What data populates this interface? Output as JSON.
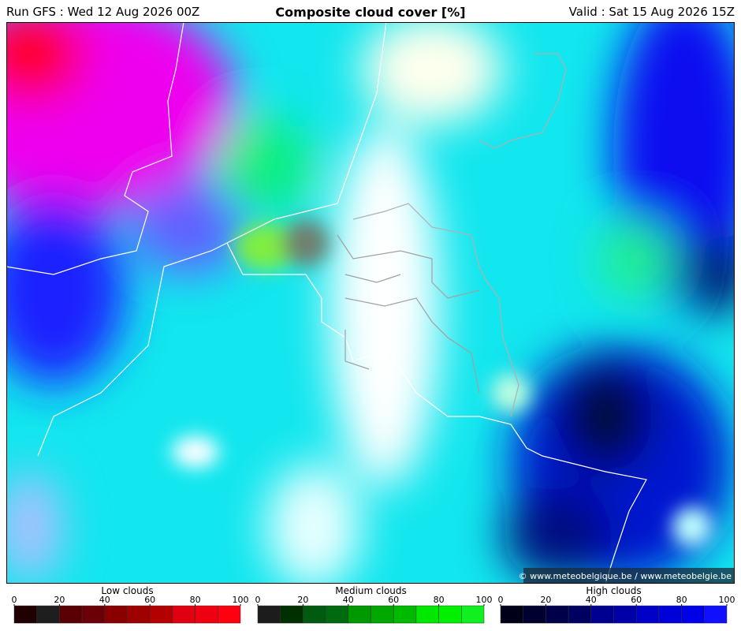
{
  "header": {
    "run": "Run GFS : Wed 12 Aug 2026 00Z",
    "title": "Composite cloud cover [%]",
    "valid": "Valid : Sat 15 Aug 2026 15Z"
  },
  "credit": "© www.meteobelgique.be / www.meteobelgie.be",
  "legends": [
    {
      "title": "Low clouds",
      "ticks": [
        0,
        20,
        40,
        60,
        80,
        100
      ],
      "colors": [
        "#200000",
        "#1e1e1e",
        "#5a0005",
        "#6a0008",
        "#8a0000",
        "#9e0000",
        "#b40000",
        "#e00010",
        "#ee0010",
        "#ff0010"
      ]
    },
    {
      "title": "Medium clouds",
      "ticks": [
        0,
        20,
        40,
        60,
        80,
        100
      ],
      "colors": [
        "#1c1c1c",
        "#003000",
        "#005a10",
        "#006a10",
        "#009a00",
        "#00a800",
        "#00ba00",
        "#00e800",
        "#00f000",
        "#10f020"
      ]
    },
    {
      "title": "High clouds",
      "ticks": [
        0,
        20,
        40,
        60,
        80,
        100
      ],
      "colors": [
        "#000018",
        "#000030",
        "#00004a",
        "#000060",
        "#000090",
        "#0000a8",
        "#0000c8",
        "#0000d8",
        "#0000e8",
        "#1010ff"
      ]
    }
  ]
}
